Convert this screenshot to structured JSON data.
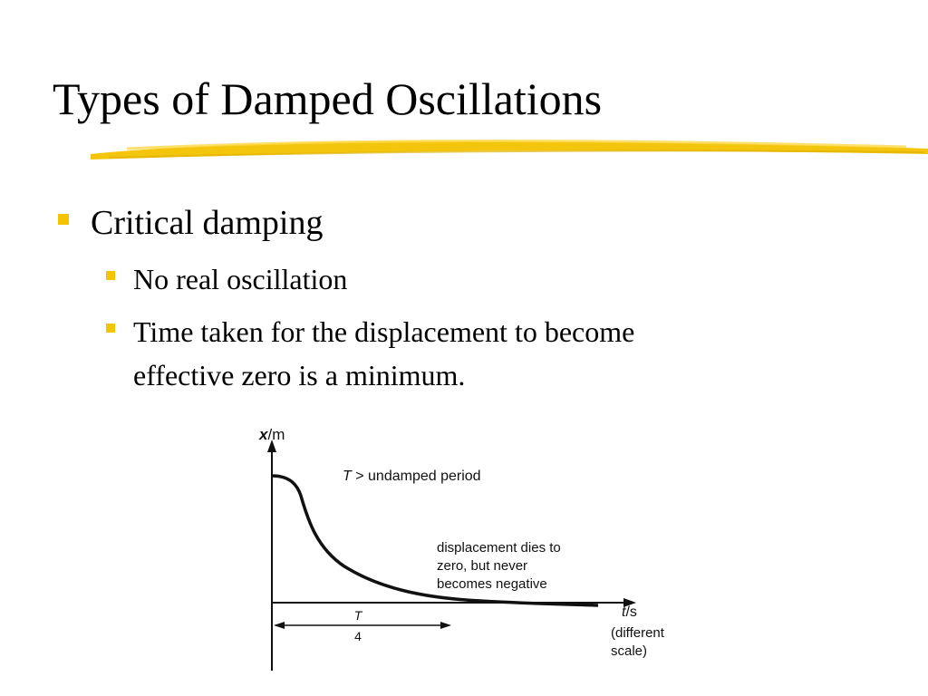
{
  "slide": {
    "title": "Types of Damped Oscillations",
    "bullets": {
      "level1": "Critical damping",
      "level2_a": "No real oscillation",
      "level2_b_line1": "Time taken for the displacement to become",
      "level2_b_line2": "effective zero is a minimum."
    }
  },
  "figure": {
    "y_axis_label_bold": "x",
    "y_axis_label_unit": "/m",
    "x_axis_label_italic": "t",
    "x_axis_label_unit": "/s",
    "x_axis_note_line1": "(different",
    "x_axis_note_line2": "scale)",
    "annotation_T": "T",
    "annotation_rest": " > undamped period",
    "curve_note_line1": "displacement dies to",
    "curve_note_line2": "zero, but never",
    "curve_note_line3": "becomes negative",
    "fraction_numerator": "T",
    "fraction_denominator": "4"
  },
  "colors": {
    "bullet": "#f5c400",
    "underline": "#f2c200"
  }
}
